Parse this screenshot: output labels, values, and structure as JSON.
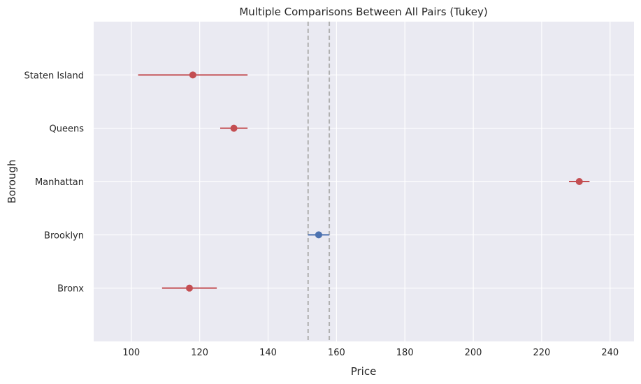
{
  "chart_data": {
    "type": "scatter",
    "title": "Multiple Comparisons Between All Pairs (Tukey)",
    "xlabel": "Price",
    "ylabel": "Borough",
    "xlim": [
      89,
      247
    ],
    "xticks": [
      100,
      120,
      140,
      160,
      180,
      200,
      220,
      240
    ],
    "categories": [
      "Bronx",
      "Brooklyn",
      "Manhattan",
      "Queens",
      "Staten Island"
    ],
    "series": [
      {
        "values": [
          {
            "category": "Bronx",
            "mean": 117,
            "lower": 109,
            "upper": 125,
            "color": "#c44e52"
          },
          {
            "category": "Brooklyn",
            "mean": 154.8,
            "lower": 151.7,
            "upper": 157.9,
            "color": "#4c72b0"
          },
          {
            "category": "Manhattan",
            "mean": 231,
            "lower": 228,
            "upper": 234,
            "color": "#c44e52"
          },
          {
            "category": "Queens",
            "mean": 130,
            "lower": 126,
            "upper": 134,
            "color": "#c44e52"
          },
          {
            "category": "Staten Island",
            "mean": 118,
            "lower": 102,
            "upper": 134,
            "color": "#c44e52"
          }
        ]
      }
    ],
    "reference_lines": [
      151.7,
      157.9
    ],
    "grid": true,
    "colors": {
      "background": "#eaeaf2",
      "grid": "#ffffff",
      "significant": "#c44e52",
      "selected": "#4c72b0",
      "reference": "#b0b0b0"
    }
  }
}
